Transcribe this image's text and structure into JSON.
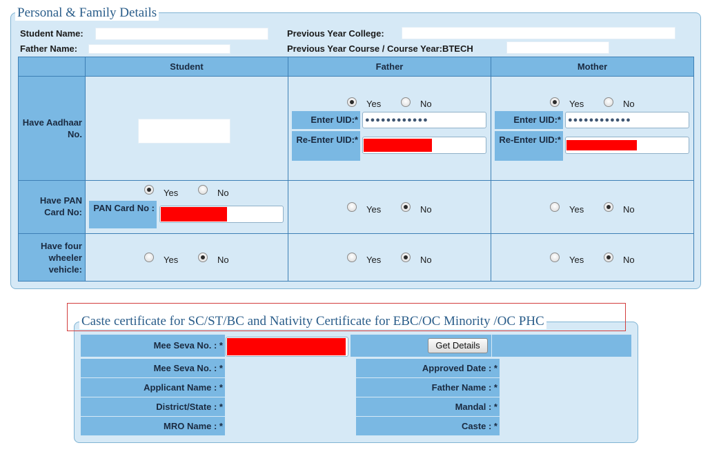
{
  "personal": {
    "legend": "Personal & Family Details",
    "student_name_label": "Student Name:",
    "father_name_label": "Father Name:",
    "prev_college_label": "Previous Year College:",
    "prev_course_label": "Previous Year Course / Course Year:",
    "prev_course_value": "BTECH"
  },
  "grid": {
    "headers": {
      "student": "Student",
      "father": "Father",
      "mother": "Mother"
    },
    "rows": {
      "aadhaar": "Have Aadhaar No.",
      "pan": "Have PAN Card No:",
      "vehicle": "Have four wheeler vehicle:"
    },
    "yes": "Yes",
    "no": "No",
    "enter_uid_label": "Enter UID:*",
    "reenter_uid_label": "Re-Enter UID:*",
    "pan_label": "PAN Card No :",
    "father_uid_masked": "●●●●●●●●●●●●",
    "mother_uid_masked": "●●●●●●●●●●●●"
  },
  "caste": {
    "legend": "Caste certificate for SC/ST/BC and Nativity Certificate for EBC/OC Minority /OC PHC",
    "mee_seva_label": "Mee Seva No. : *",
    "get_details_label": "Get Details",
    "mee_seva_label2": "Mee Seva No. : *",
    "approved_date_label": "Approved Date : *",
    "applicant_name_label": "Applicant Name : *",
    "father_name_label": "Father Name : *",
    "district_label": "District/State : *",
    "mandal_label": "Mandal : *",
    "mro_label": "MRO Name : *",
    "caste_label": "Caste : *"
  },
  "colors": {
    "panel_bg": "#d6e9f6",
    "header_bg": "#7ab8e3",
    "border": "#3d7fb5",
    "redaction": "#ff0000",
    "highlight": "#d23c3c"
  }
}
